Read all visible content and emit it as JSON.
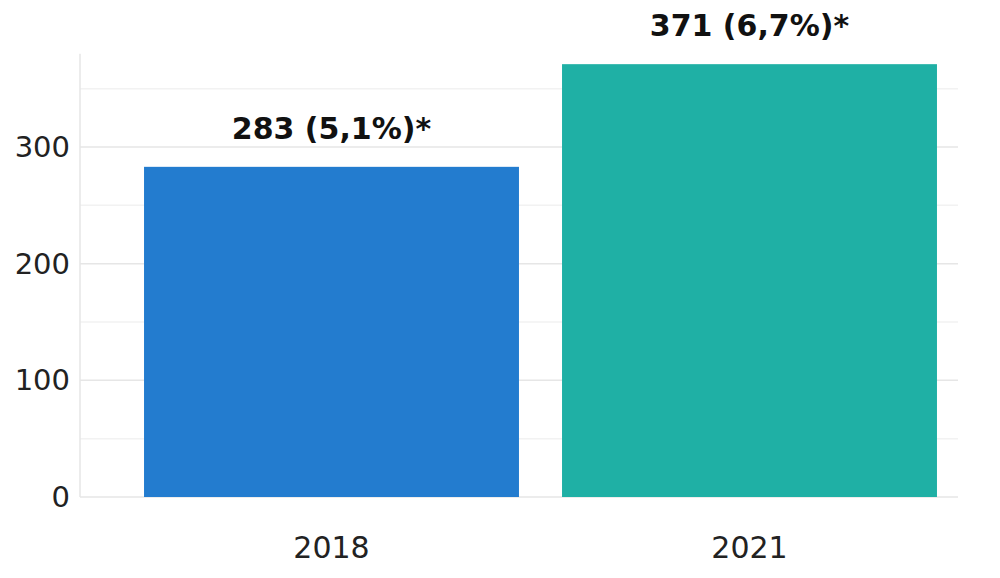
{
  "chart_data": {
    "type": "bar",
    "categories": [
      "2018",
      "2021"
    ],
    "values": [
      283,
      371
    ],
    "value_labels": [
      "283 (5,1%)*",
      "371 (6,7%)*"
    ],
    "colors": [
      "#237ccf",
      "#1fb0a5"
    ],
    "ylim": [
      0,
      380
    ],
    "yticks": [
      0,
      100,
      200,
      300
    ],
    "grid": true,
    "data_labels": true
  }
}
